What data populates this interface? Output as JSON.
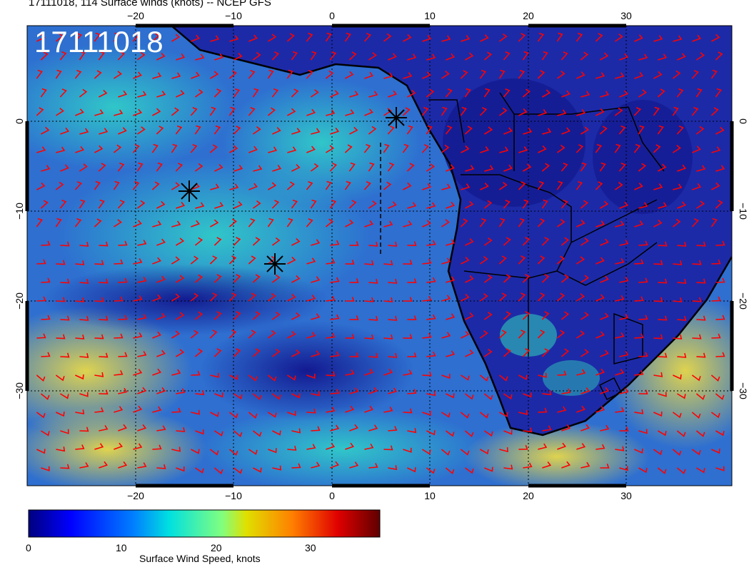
{
  "header": {
    "title": "17111018, 114 Surface winds (knots) -- NCEP GFS",
    "stamp": "17111018"
  },
  "map": {
    "lon_ticks": [
      "−20",
      "−10",
      "0",
      "10",
      "20",
      "30"
    ],
    "lat_ticks": [
      "0",
      "−10",
      "−20",
      "−30"
    ],
    "colors": {
      "calm": "#1a1a9a",
      "moderate": "#3aa0d8",
      "fresh": "#20d0c0",
      "strong": "#e0d040",
      "barb": "#ff0000",
      "coast": "#000000"
    },
    "markers": [
      "asterisk-marker",
      "asterisk-marker",
      "asterisk-marker"
    ]
  },
  "colorbar": {
    "title": "Surface Wind Speed, knots",
    "labels": [
      "0",
      "10",
      "20",
      "30"
    ]
  }
}
